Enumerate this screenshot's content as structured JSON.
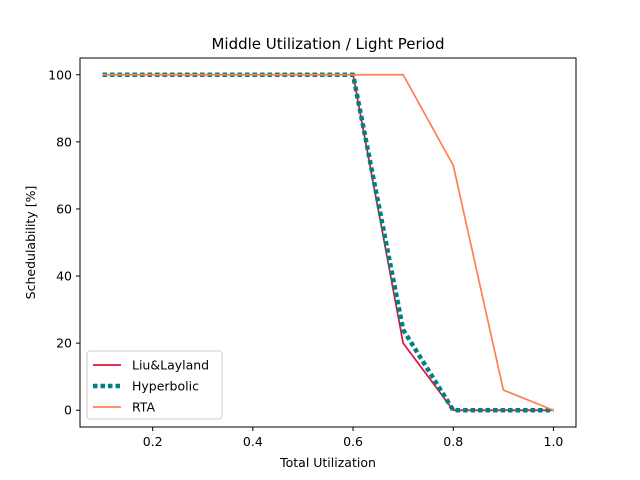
{
  "chart_data": {
    "type": "line",
    "title": "Middle Utilization / Light Period",
    "xlabel": "Total Utilization",
    "ylabel": "Schedulability [%]",
    "xlim": [
      0.055,
      1.045
    ],
    "ylim": [
      -5,
      105
    ],
    "xticks": [
      0.2,
      0.4,
      0.6,
      0.8,
      1.0
    ],
    "xtick_labels": [
      "0.2",
      "0.4",
      "0.6",
      "0.8",
      "1.0"
    ],
    "yticks": [
      0,
      20,
      40,
      60,
      80,
      100
    ],
    "ytick_labels": [
      "0",
      "20",
      "40",
      "60",
      "80",
      "100"
    ],
    "grid": false,
    "legend_position": "lower-left",
    "x": [
      0.1,
      0.2,
      0.3,
      0.4,
      0.5,
      0.6,
      0.7,
      0.8,
      0.9,
      1.0
    ],
    "series": [
      {
        "name": "Liu&Layland",
        "values": [
          100,
          100,
          100,
          100,
          100,
          100,
          20,
          0,
          0,
          0
        ],
        "color": "#dc143c",
        "style": "solid"
      },
      {
        "name": "Hyperbolic",
        "values": [
          100,
          100,
          100,
          100,
          100,
          100,
          24,
          0,
          0,
          0
        ],
        "color": "#008080",
        "style": "dotted"
      },
      {
        "name": "RTA",
        "values": [
          100,
          100,
          100,
          100,
          100,
          100,
          100,
          73,
          6,
          0
        ],
        "color": "#ff7f50",
        "style": "solid"
      }
    ]
  }
}
